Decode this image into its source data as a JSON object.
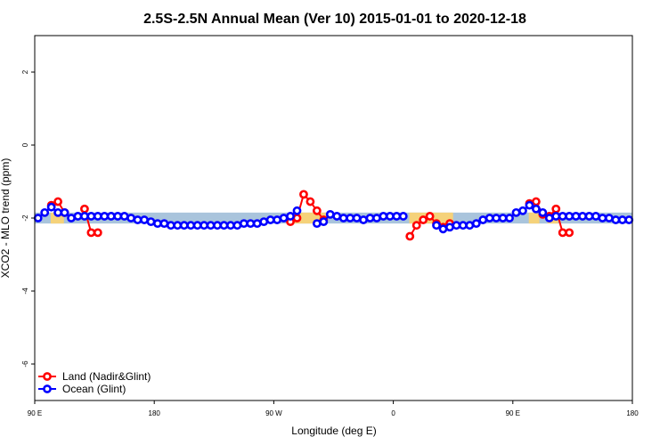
{
  "chart_data": {
    "type": "line",
    "title": "2.5S-2.5N Annual Mean (Ver 10)   2015-01-01 to 2020-12-18",
    "xlabel": "Longitude (deg E)",
    "ylabel": "XCO2 - MLO trend (ppm)",
    "xlim": [
      90,
      540
    ],
    "ylim": [
      -7,
      3
    ],
    "x_ticks": [
      {
        "value": 90,
        "label": "90 E"
      },
      {
        "value": 180,
        "label": "180"
      },
      {
        "value": 270,
        "label": "90 W"
      },
      {
        "value": 360,
        "label": "0"
      },
      {
        "value": 450,
        "label": "90 E"
      },
      {
        "value": 540,
        "label": "180"
      }
    ],
    "y_ticks": [
      {
        "value": 2,
        "label": "2"
      },
      {
        "value": 0,
        "label": "0"
      },
      {
        "value": -2,
        "label": "-2"
      },
      {
        "value": -4,
        "label": "-4"
      },
      {
        "value": -6,
        "label": "-6"
      }
    ],
    "grid": false,
    "legend_position": "bottom-left",
    "bands": {
      "ocean": {
        "y_low": -2.15,
        "y_high": -1.85,
        "x_ranges": [
          [
            90,
            540
          ]
        ],
        "color": "#a9c4dc"
      },
      "land": {
        "y_low": -2.15,
        "y_high": -1.85,
        "x_ranges": [
          [
            102,
            112
          ],
          [
            283,
            310
          ],
          [
            372,
            405
          ],
          [
            462,
            470
          ],
          [
            476,
            484
          ]
        ],
        "color": "#f5d27a"
      }
    },
    "series": [
      {
        "name": "Land (Nadir&Glint)",
        "color": "#ff0000",
        "segments": [
          [
            [
              102.5,
              -1.65
            ],
            [
              107.5,
              -1.55
            ],
            [
              112.5,
              -1.85
            ]
          ],
          [
            [
              127.5,
              -1.75
            ],
            [
              132.5,
              -2.4
            ],
            [
              137.5,
              -2.4
            ]
          ],
          [
            [
              282.5,
              -2.1
            ],
            [
              287.5,
              -2.0
            ],
            [
              292.5,
              -1.35
            ],
            [
              297.5,
              -1.55
            ],
            [
              302.5,
              -1.8
            ],
            [
              307.5,
              -2.05
            ]
          ],
          [
            [
              372.5,
              -2.5
            ],
            [
              377.5,
              -2.2
            ],
            [
              382.5,
              -2.05
            ],
            [
              387.5,
              -1.95
            ],
            [
              392.5,
              -2.15
            ],
            [
              397.5,
              -2.25
            ],
            [
              402.5,
              -2.15
            ]
          ],
          [
            [
              462.5,
              -1.6
            ],
            [
              467.5,
              -1.55
            ],
            [
              472.5,
              -1.9
            ]
          ],
          [
            [
              477.5,
              -1.95
            ],
            [
              482.5,
              -1.75
            ],
            [
              487.5,
              -2.4
            ],
            [
              492.5,
              -2.4
            ]
          ]
        ]
      },
      {
        "name": "Ocean (Glint)",
        "color": "#0000ff",
        "segments": [
          [
            [
              92.5,
              -2.0
            ],
            [
              97.5,
              -1.85
            ],
            [
              102.5,
              -1.7
            ],
            [
              107.5,
              -1.85
            ],
            [
              112.5,
              -1.85
            ],
            [
              117.5,
              -2.0
            ],
            [
              122.5,
              -1.95
            ],
            [
              127.5,
              -1.95
            ],
            [
              132.5,
              -1.95
            ],
            [
              137.5,
              -1.95
            ],
            [
              142.5,
              -1.95
            ],
            [
              147.5,
              -1.95
            ],
            [
              152.5,
              -1.95
            ],
            [
              157.5,
              -1.95
            ],
            [
              162.5,
              -2.0
            ],
            [
              167.5,
              -2.05
            ],
            [
              172.5,
              -2.05
            ],
            [
              177.5,
              -2.1
            ],
            [
              182.5,
              -2.15
            ],
            [
              187.5,
              -2.15
            ],
            [
              192.5,
              -2.2
            ],
            [
              197.5,
              -2.2
            ],
            [
              202.5,
              -2.2
            ],
            [
              207.5,
              -2.2
            ],
            [
              212.5,
              -2.2
            ],
            [
              217.5,
              -2.2
            ],
            [
              222.5,
              -2.2
            ],
            [
              227.5,
              -2.2
            ],
            [
              232.5,
              -2.2
            ],
            [
              237.5,
              -2.2
            ],
            [
              242.5,
              -2.2
            ],
            [
              247.5,
              -2.15
            ],
            [
              252.5,
              -2.15
            ],
            [
              257.5,
              -2.15
            ],
            [
              262.5,
              -2.1
            ],
            [
              267.5,
              -2.05
            ],
            [
              272.5,
              -2.05
            ],
            [
              277.5,
              -2.0
            ],
            [
              282.5,
              -1.95
            ],
            [
              287.5,
              -1.8
            ]
          ],
          [
            [
              302.5,
              -2.15
            ],
            [
              307.5,
              -2.1
            ],
            [
              312.5,
              -1.9
            ]
          ],
          [
            [
              317.5,
              -1.95
            ],
            [
              322.5,
              -2.0
            ],
            [
              327.5,
              -2.0
            ],
            [
              332.5,
              -2.0
            ],
            [
              337.5,
              -2.05
            ],
            [
              342.5,
              -2.0
            ],
            [
              347.5,
              -2.0
            ],
            [
              352.5,
              -1.95
            ],
            [
              357.5,
              -1.95
            ],
            [
              362.5,
              -1.95
            ],
            [
              367.5,
              -1.95
            ]
          ],
          [
            [
              392.5,
              -2.2
            ],
            [
              397.5,
              -2.3
            ],
            [
              402.5,
              -2.25
            ],
            [
              407.5,
              -2.2
            ],
            [
              412.5,
              -2.2
            ],
            [
              417.5,
              -2.2
            ],
            [
              422.5,
              -2.15
            ],
            [
              427.5,
              -2.05
            ],
            [
              432.5,
              -2.0
            ],
            [
              437.5,
              -2.0
            ],
            [
              442.5,
              -2.0
            ],
            [
              447.5,
              -2.0
            ],
            [
              452.5,
              -1.85
            ],
            [
              457.5,
              -1.8
            ],
            [
              462.5,
              -1.65
            ],
            [
              467.5,
              -1.75
            ],
            [
              472.5,
              -1.85
            ],
            [
              477.5,
              -2.0
            ],
            [
              482.5,
              -1.95
            ],
            [
              487.5,
              -1.95
            ],
            [
              492.5,
              -1.95
            ],
            [
              497.5,
              -1.95
            ],
            [
              502.5,
              -1.95
            ],
            [
              507.5,
              -1.95
            ],
            [
              512.5,
              -1.95
            ],
            [
              517.5,
              -2.0
            ],
            [
              522.5,
              -2.0
            ],
            [
              527.5,
              -2.05
            ],
            [
              532.5,
              -2.05
            ],
            [
              537.5,
              -2.05
            ]
          ]
        ]
      }
    ]
  }
}
